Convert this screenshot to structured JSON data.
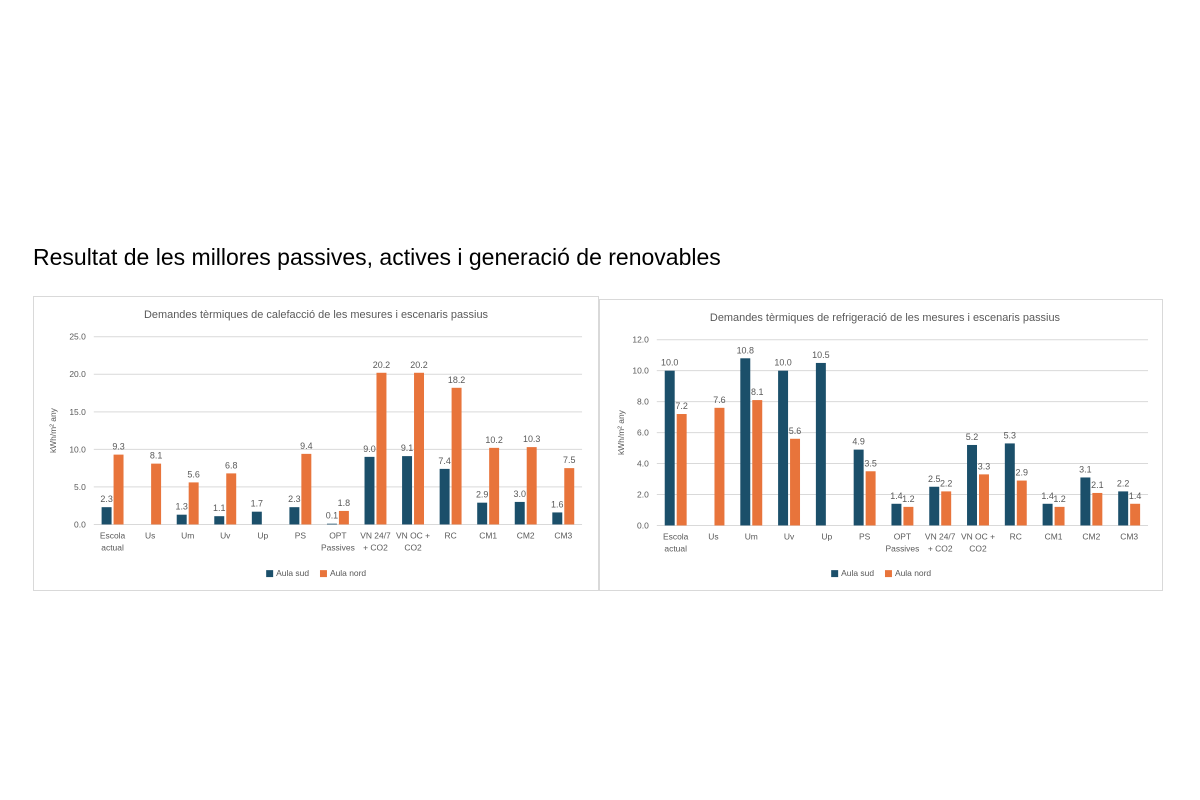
{
  "page": {
    "title": "Resultat de les millores passives, actives i generació de renovables"
  },
  "colors": {
    "aula_sud": "#1b4f6a",
    "aula_nord": "#e8743b",
    "grid": "#d9d9d9",
    "text": "#595959",
    "title": "#595959"
  },
  "chart_data": [
    {
      "type": "bar",
      "title": "Demandes tèrmiques de calefacció de les mesures i escenaris passius",
      "ylabel": "kWh/m² any",
      "xlabel": "",
      "ylim": [
        0,
        25
      ],
      "yticks": [
        "0.0",
        "5.0",
        "10.0",
        "15.0",
        "20.0",
        "25.0"
      ],
      "grid": true,
      "legend_position": "bottom",
      "categories": [
        [
          "Escola",
          "actual"
        ],
        [
          "Us"
        ],
        [
          "Um"
        ],
        [
          "Uv"
        ],
        [
          "Up"
        ],
        [
          "PS"
        ],
        [
          "OPT",
          "Passives"
        ],
        [
          "VN 24/7",
          "+ CO2"
        ],
        [
          "VN OC +",
          "CO2"
        ],
        [
          "RC"
        ],
        [
          "CM1"
        ],
        [
          "CM2"
        ],
        [
          "CM3"
        ]
      ],
      "series": [
        {
          "name": "Aula sud",
          "color": "#1b4f6a",
          "values": [
            2.3,
            null,
            1.3,
            1.1,
            1.7,
            2.3,
            0.1,
            9.0,
            9.1,
            7.4,
            2.9,
            3.0,
            1.6
          ],
          "labels": [
            "2.3",
            "",
            "1.3",
            "1.1",
            "1.7",
            "2.3",
            "0.1",
            "9.0",
            "9.1",
            "7.4",
            "2.9",
            "3.0",
            "1.6"
          ]
        },
        {
          "name": "Aula nord",
          "color": "#e8743b",
          "values": [
            9.3,
            8.1,
            5.6,
            6.8,
            null,
            9.4,
            1.8,
            20.2,
            20.2,
            18.2,
            10.2,
            10.3,
            7.5
          ],
          "labels": [
            "9.3",
            "8.1",
            "5.6",
            "6.8",
            "",
            "9.4",
            "1.8",
            "20.2",
            "20.2",
            "18.2",
            "10.2",
            "10.3",
            "7.5"
          ]
        }
      ]
    },
    {
      "type": "bar",
      "title": "Demandes tèrmiques de refrigeració de les mesures i escenaris passius",
      "ylabel": "kWh/m² any",
      "xlabel": "",
      "ylim": [
        0,
        12
      ],
      "yticks": [
        "0.0",
        "2.0",
        "4.0",
        "6.0",
        "8.0",
        "10.0",
        "12.0"
      ],
      "grid": true,
      "legend_position": "bottom",
      "categories": [
        [
          "Escola",
          "actual"
        ],
        [
          "Us"
        ],
        [
          "Um"
        ],
        [
          "Uv"
        ],
        [
          "Up"
        ],
        [
          "PS"
        ],
        [
          "OPT",
          "Passives"
        ],
        [
          "VN 24/7",
          "+ CO2"
        ],
        [
          "VN OC +",
          "CO2"
        ],
        [
          "RC"
        ],
        [
          "CM1"
        ],
        [
          "CM2"
        ],
        [
          "CM3"
        ]
      ],
      "series": [
        {
          "name": "Aula sud",
          "color": "#1b4f6a",
          "values": [
            10.0,
            null,
            10.8,
            10.0,
            10.5,
            4.9,
            1.4,
            2.5,
            5.2,
            5.3,
            1.4,
            3.1,
            2.2
          ],
          "labels": [
            "10.0",
            "",
            "10.8",
            "10.0",
            "10.5",
            "4.9",
            "1.4",
            "2.5",
            "5.2",
            "5.3",
            "1.4",
            "3.1",
            "2.2"
          ]
        },
        {
          "name": "Aula nord",
          "color": "#e8743b",
          "values": [
            7.2,
            7.6,
            8.1,
            5.6,
            null,
            3.5,
            1.2,
            2.2,
            3.3,
            2.9,
            1.2,
            2.1,
            1.4
          ],
          "labels": [
            "7.2",
            "7.6",
            "8.1",
            "5.6",
            "",
            "3.5",
            "1.2",
            "2.2",
            "3.3",
            "2.9",
            "1.2",
            "2.1",
            "1.4"
          ]
        }
      ]
    }
  ]
}
